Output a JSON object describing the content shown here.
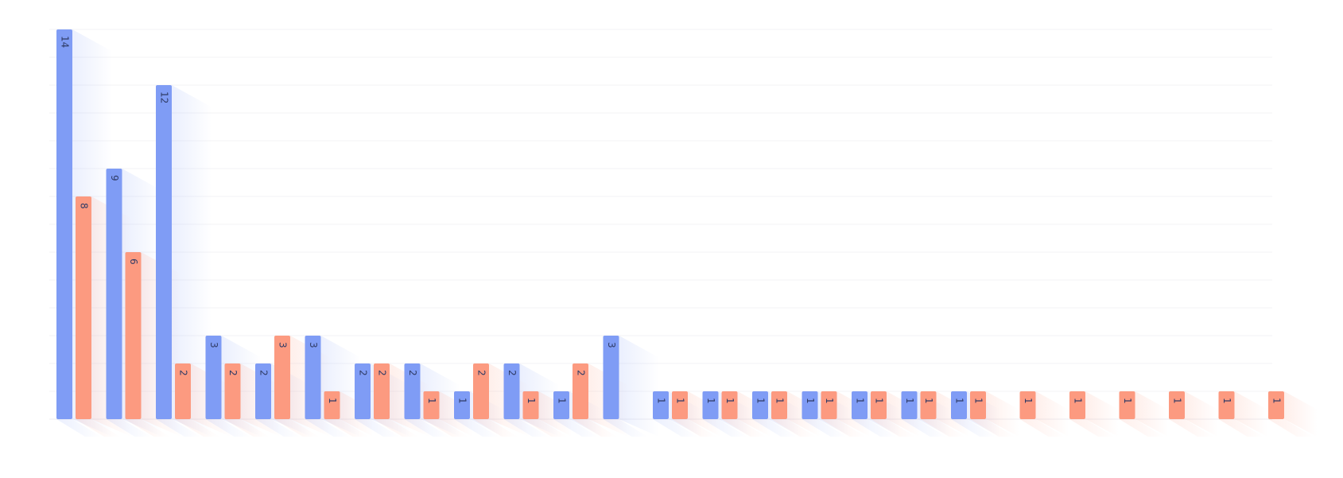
{
  "chart_data": {
    "type": "bar",
    "title": "",
    "xlabel": "",
    "ylabel": "",
    "ylim": [
      0,
      14
    ],
    "grid": true,
    "legend": "none",
    "categories": [
      "",
      "",
      "",
      "",
      "",
      "",
      "",
      "",
      "",
      "",
      "",
      "",
      "",
      "",
      "",
      "",
      "",
      "",
      "",
      "",
      "",
      "",
      "",
      "",
      ""
    ],
    "series": [
      {
        "color": "#7f9cf5",
        "values": [
          14,
          9,
          12,
          3,
          2,
          3,
          2,
          2,
          1,
          2,
          1,
          3,
          1,
          1,
          1,
          1,
          1,
          1,
          1,
          null,
          null,
          null,
          null,
          null,
          null
        ]
      },
      {
        "color": "#fc9a80",
        "values": [
          8,
          6,
          2,
          2,
          3,
          1,
          2,
          1,
          2,
          1,
          2,
          null,
          1,
          1,
          1,
          1,
          1,
          1,
          1,
          1,
          1,
          1,
          1,
          1,
          1
        ]
      }
    ]
  }
}
